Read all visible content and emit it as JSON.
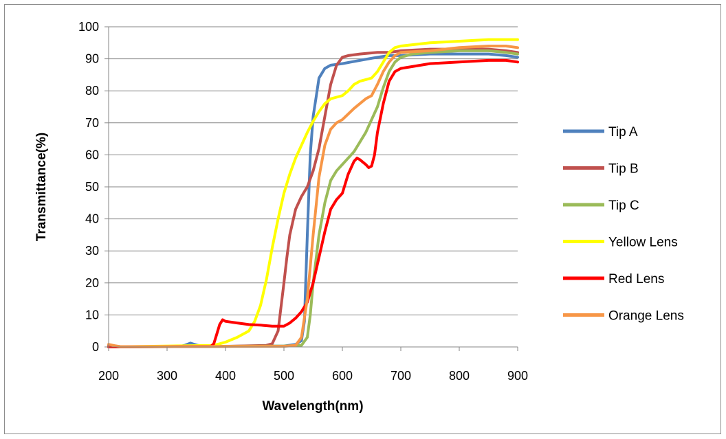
{
  "chart_data": {
    "type": "line",
    "title": "",
    "xlabel": "Wavelength(nm)",
    "ylabel": "Transmittance(%)",
    "xlim": [
      200,
      900
    ],
    "ylim": [
      0,
      100
    ],
    "xticks": [
      200,
      300,
      400,
      500,
      600,
      700,
      800,
      900
    ],
    "yticks": [
      0,
      10,
      20,
      30,
      40,
      50,
      60,
      70,
      80,
      90,
      100
    ],
    "grid": "horizontal",
    "legend": "right",
    "series": [
      {
        "name": "Tip A",
        "color": "#4F81BD",
        "x": [
          200,
          210,
          220,
          320,
          330,
          340,
          350,
          360,
          500,
          520,
          530,
          535,
          540,
          545,
          550,
          555,
          560,
          570,
          580,
          600,
          630,
          660,
          680,
          700,
          750,
          800,
          850,
          880,
          900
        ],
        "y": [
          0.5,
          0.3,
          0.1,
          0.1,
          0.5,
          1.2,
          0.6,
          0.2,
          0.3,
          0.8,
          2,
          8,
          35,
          60,
          72,
          78,
          84,
          87,
          88,
          88.5,
          89.5,
          90.5,
          91,
          91,
          91.5,
          91.5,
          91.5,
          91,
          90.5
        ]
      },
      {
        "name": "Tip B",
        "color": "#C0504D",
        "x": [
          200,
          400,
          470,
          480,
          490,
          500,
          505,
          510,
          520,
          530,
          540,
          550,
          560,
          570,
          580,
          590,
          600,
          610,
          630,
          660,
          680,
          700,
          750,
          800,
          850,
          880,
          900
        ],
        "y": [
          0,
          0.2,
          0.5,
          1,
          5,
          20,
          28,
          35,
          43,
          47,
          50,
          55,
          62,
          72,
          82,
          88,
          90.5,
          91,
          91.5,
          92,
          92,
          92.5,
          93,
          93,
          93,
          92.5,
          92
        ]
      },
      {
        "name": "Tip C",
        "color": "#9BBB59",
        "x": [
          200,
          500,
          530,
          540,
          545,
          550,
          560,
          570,
          580,
          590,
          600,
          620,
          640,
          660,
          670,
          680,
          690,
          700,
          720,
          750,
          800,
          850,
          880,
          900
        ],
        "y": [
          0,
          0.3,
          0.5,
          3,
          10,
          20,
          35,
          45,
          52,
          55,
          57,
          61,
          67,
          75,
          81,
          86,
          89,
          90.5,
          91.5,
          92,
          92.5,
          92.5,
          92,
          91.5
        ]
      },
      {
        "name": "Yellow Lens",
        "color": "#FFFF00",
        "x": [
          200,
          380,
          400,
          420,
          440,
          450,
          460,
          470,
          480,
          490,
          500,
          510,
          520,
          530,
          540,
          550,
          560,
          570,
          580,
          590,
          600,
          610,
          620,
          630,
          640,
          650,
          660,
          670,
          680,
          690,
          700,
          750,
          800,
          850,
          880,
          900
        ],
        "y": [
          0,
          0.5,
          1.5,
          3,
          5,
          8,
          13,
          21,
          31,
          40,
          48,
          54,
          59,
          63,
          67,
          70.5,
          73.5,
          76,
          77.5,
          78,
          78.5,
          80,
          82,
          83,
          83.5,
          84,
          86,
          89,
          92,
          93.5,
          94,
          95,
          95.5,
          96,
          96,
          96
        ]
      },
      {
        "name": "Red Lens",
        "color": "#FF0000",
        "x": [
          200,
          375,
          380,
          385,
          390,
          395,
          400,
          420,
          440,
          460,
          480,
          500,
          510,
          520,
          530,
          540,
          550,
          560,
          570,
          580,
          590,
          600,
          610,
          620,
          625,
          630,
          640,
          645,
          650,
          655,
          660,
          670,
          680,
          690,
          700,
          750,
          800,
          850,
          880,
          900
        ],
        "y": [
          0,
          0.2,
          1,
          4,
          7,
          8.5,
          8,
          7.5,
          7,
          6.8,
          6.5,
          6.5,
          7.5,
          9,
          11,
          14,
          20,
          28,
          36,
          43,
          46,
          48,
          54,
          58,
          59,
          58.5,
          57,
          56,
          56.5,
          60,
          67,
          76,
          83,
          86,
          87,
          88.5,
          89,
          89.5,
          89.5,
          89
        ]
      },
      {
        "name": "Orange Lens",
        "color": "#F79646",
        "x": [
          200,
          210,
          220,
          500,
          520,
          530,
          540,
          550,
          560,
          570,
          580,
          590,
          600,
          620,
          640,
          650,
          660,
          670,
          680,
          690,
          700,
          750,
          800,
          850,
          880,
          900
        ],
        "y": [
          0.8,
          0.4,
          0.1,
          0.2,
          0.5,
          3,
          15,
          35,
          53,
          63,
          68,
          70,
          71,
          74.5,
          77.5,
          78.5,
          82,
          86,
          89,
          91,
          92,
          92.5,
          93.5,
          94,
          94,
          93.5
        ]
      }
    ]
  }
}
